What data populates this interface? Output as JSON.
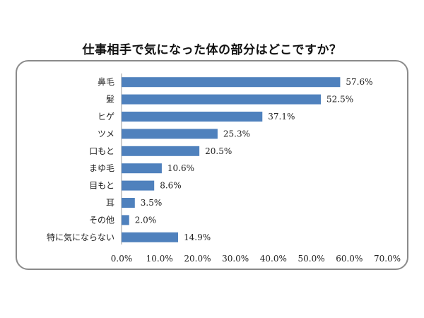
{
  "chart_data": {
    "type": "bar",
    "orientation": "horizontal",
    "title": "仕事相手で気になった体の部分はどこですか？",
    "categories": [
      "鼻毛",
      "髪",
      "ヒゲ",
      "ツメ",
      "口もと",
      "まゆ毛",
      "目もと",
      "耳",
      "その他",
      "特に気にならない"
    ],
    "values": [
      57.6,
      52.5,
      37.1,
      25.3,
      20.5,
      10.6,
      8.6,
      3.5,
      2.0,
      14.9
    ],
    "value_labels": [
      "57.6%",
      "52.5%",
      "37.1%",
      "25.3%",
      "20.5%",
      "10.6%",
      "8.6%",
      "3.5%",
      "2.0%",
      "14.9%"
    ],
    "xticks": [
      "0.0%",
      "10.0%",
      "20.0%",
      "30.0%",
      "40.0%",
      "50.0%",
      "60.0%",
      "70.0%"
    ],
    "xlim": [
      0,
      70
    ],
    "grid": false,
    "bar_color": "#4f81bd"
  }
}
